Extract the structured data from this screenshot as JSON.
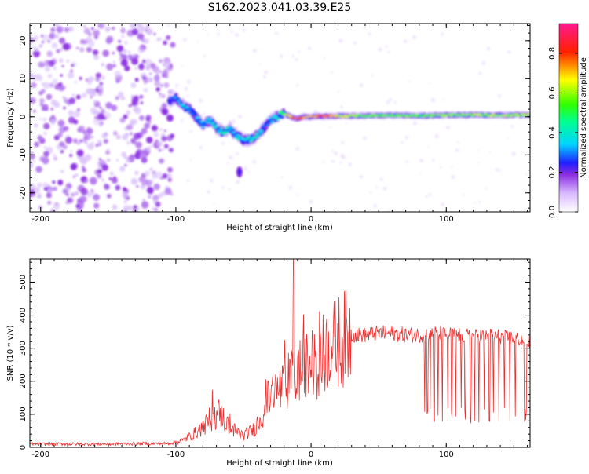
{
  "title": "S162.2023.041.03.39.E25",
  "chart_data": [
    {
      "type": "heatmap",
      "xlabel": "Height of straight line (km)",
      "ylabel": "Frequency (Hz)",
      "xlim": [
        -208,
        162
      ],
      "ylim": [
        -25,
        24.5
      ],
      "x_ticks": [
        -200,
        -100,
        0,
        100
      ],
      "y_ticks": [
        -20,
        -10,
        0,
        10,
        20
      ],
      "colorbar": {
        "label": "Normalized spectral amplitude",
        "range": [
          0,
          0.95
        ],
        "ticks": [
          0.0,
          0.2,
          0.4,
          0.6,
          0.8
        ],
        "colors": [
          "#ffffff",
          "#e6c8ff",
          "#8a2be2",
          "#2020ff",
          "#00e5ff",
          "#00ff60",
          "#ffff00",
          "#ff0000",
          "#ff1a8c"
        ]
      },
      "ridge": {
        "x": [
          -105,
          -100,
          -95,
          -90,
          -85,
          -80,
          -75,
          -70,
          -65,
          -60,
          -55,
          -50,
          -45,
          -40,
          -35,
          -30,
          -25,
          -20,
          -15,
          -10,
          -5,
          0,
          10,
          20,
          40,
          60,
          80,
          100,
          120,
          140,
          160
        ],
        "freq": [
          4,
          5,
          3,
          2,
          0,
          -2,
          -1,
          -3,
          -4,
          -3,
          -5,
          -6,
          -6,
          -5,
          -3,
          -1,
          0,
          1,
          0,
          -0.5,
          0,
          0,
          0.2,
          0.2,
          0.3,
          0.4,
          0.3,
          0.4,
          0.5,
          0.4,
          0.5
        ],
        "amplitude": [
          0.2,
          0.3,
          0.35,
          0.3,
          0.3,
          0.35,
          0.35,
          0.35,
          0.4,
          0.35,
          0.35,
          0.4,
          0.4,
          0.4,
          0.3,
          0.3,
          0.4,
          0.55,
          0.75,
          0.8,
          0.7,
          0.7,
          0.8,
          0.65,
          0.55,
          0.55,
          0.55,
          0.6,
          0.6,
          0.6,
          0.6
        ]
      },
      "noise_region_x": [
        -208,
        -102
      ],
      "noise_amplitude": 0.12
    },
    {
      "type": "line",
      "xlabel": "Height of straight line (km)",
      "ylabel": "SNR (10 * v/v)",
      "xlim": [
        -208,
        162
      ],
      "ylim": [
        0,
        570
      ],
      "x_ticks": [
        -200,
        -100,
        0,
        100
      ],
      "y_ticks": [
        0,
        100,
        200,
        300,
        400,
        500
      ],
      "line_color": "#e83030",
      "envelope": {
        "x": [
          -208,
          -150,
          -105,
          -95,
          -85,
          -75,
          -68,
          -60,
          -50,
          -42,
          -35,
          -30,
          -25,
          -20,
          -15,
          -10,
          -5,
          0,
          5,
          10,
          20,
          25,
          30,
          40,
          50,
          60,
          70,
          80,
          90,
          100,
          110,
          120,
          130,
          140,
          150,
          162
        ],
        "y": [
          10,
          10,
          12,
          20,
          45,
          80,
          105,
          60,
          35,
          55,
          110,
          160,
          170,
          180,
          210,
          230,
          240,
          250,
          260,
          290,
          320,
          330,
          340,
          340,
          345,
          345,
          340,
          340,
          345,
          340,
          340,
          335,
          340,
          335,
          330,
          320
        ]
      },
      "spike": {
        "x": -13,
        "y": 570
      },
      "dropouts_x": [
        84,
        86,
        88,
        91,
        94,
        97,
        101,
        104,
        107,
        111,
        114,
        118,
        121,
        124,
        128,
        132,
        135,
        139,
        143,
        147,
        151,
        158,
        159
      ]
    }
  ]
}
